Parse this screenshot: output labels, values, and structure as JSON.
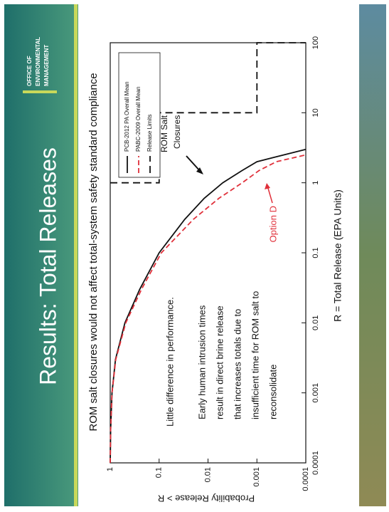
{
  "header": {
    "logo": [
      "OFFICE OF",
      "ENVIRONMENTAL",
      "MANAGEMENT"
    ],
    "title": "Results: Total Releases"
  },
  "subtitle": "ROM salt closures would not affect total-system safety standard compliance",
  "chart_data": {
    "type": "line",
    "x_label": "R = Total Release (EPA Units)",
    "y_label": "Probability Release > R",
    "xlim": [
      0.0001,
      100
    ],
    "ylim": [
      0.0001,
      1
    ],
    "xticks": [
      0.0001,
      0.001,
      0.01,
      0.1,
      1,
      10,
      100
    ],
    "yticks": [
      0.0001,
      0.001,
      0.01,
      0.1,
      1
    ],
    "log_x": true,
    "log_y": true,
    "legend": "upper right",
    "series": [
      {
        "name": "PCB-2012 PA Overall Mean",
        "color": "#111111",
        "dash": "solid",
        "x": [
          0.0001,
          0.0003,
          0.001,
          0.003,
          0.01,
          0.03,
          0.1,
          0.3,
          0.6,
          1,
          1.5,
          2,
          3
        ],
        "values": [
          1,
          0.98,
          0.92,
          0.78,
          0.5,
          0.25,
          0.1,
          0.03,
          0.012,
          0.005,
          0.002,
          0.001,
          0.0001
        ]
      },
      {
        "name": "PABC-2009 Overall Mean",
        "color": "#e0303a",
        "dash": "dashed",
        "x": [
          0.0001,
          0.0003,
          0.001,
          0.003,
          0.01,
          0.03,
          0.1,
          0.3,
          0.6,
          1,
          1.5,
          2,
          2.5
        ],
        "values": [
          1,
          0.98,
          0.92,
          0.77,
          0.48,
          0.23,
          0.09,
          0.02,
          0.006,
          0.002,
          0.0009,
          0.0004,
          0.0001
        ]
      },
      {
        "name": "Release Limits",
        "color": "#111111",
        "dash": "longdash",
        "x": [
          1,
          1,
          10,
          10,
          100,
          100
        ],
        "values": [
          1,
          0.1,
          0.1,
          0.001,
          0.001,
          0.0001
        ]
      }
    ]
  },
  "annotations": {
    "summary": "Little difference in performance.",
    "explanation": [
      "Early human intrusion times",
      "result in direct brine release",
      "that increases totals due to",
      "insufficient time for ROM salt to",
      "reconsolidate"
    ],
    "rom_label": [
      "ROM Salt",
      "Closures"
    ],
    "option_label": "Option D"
  }
}
